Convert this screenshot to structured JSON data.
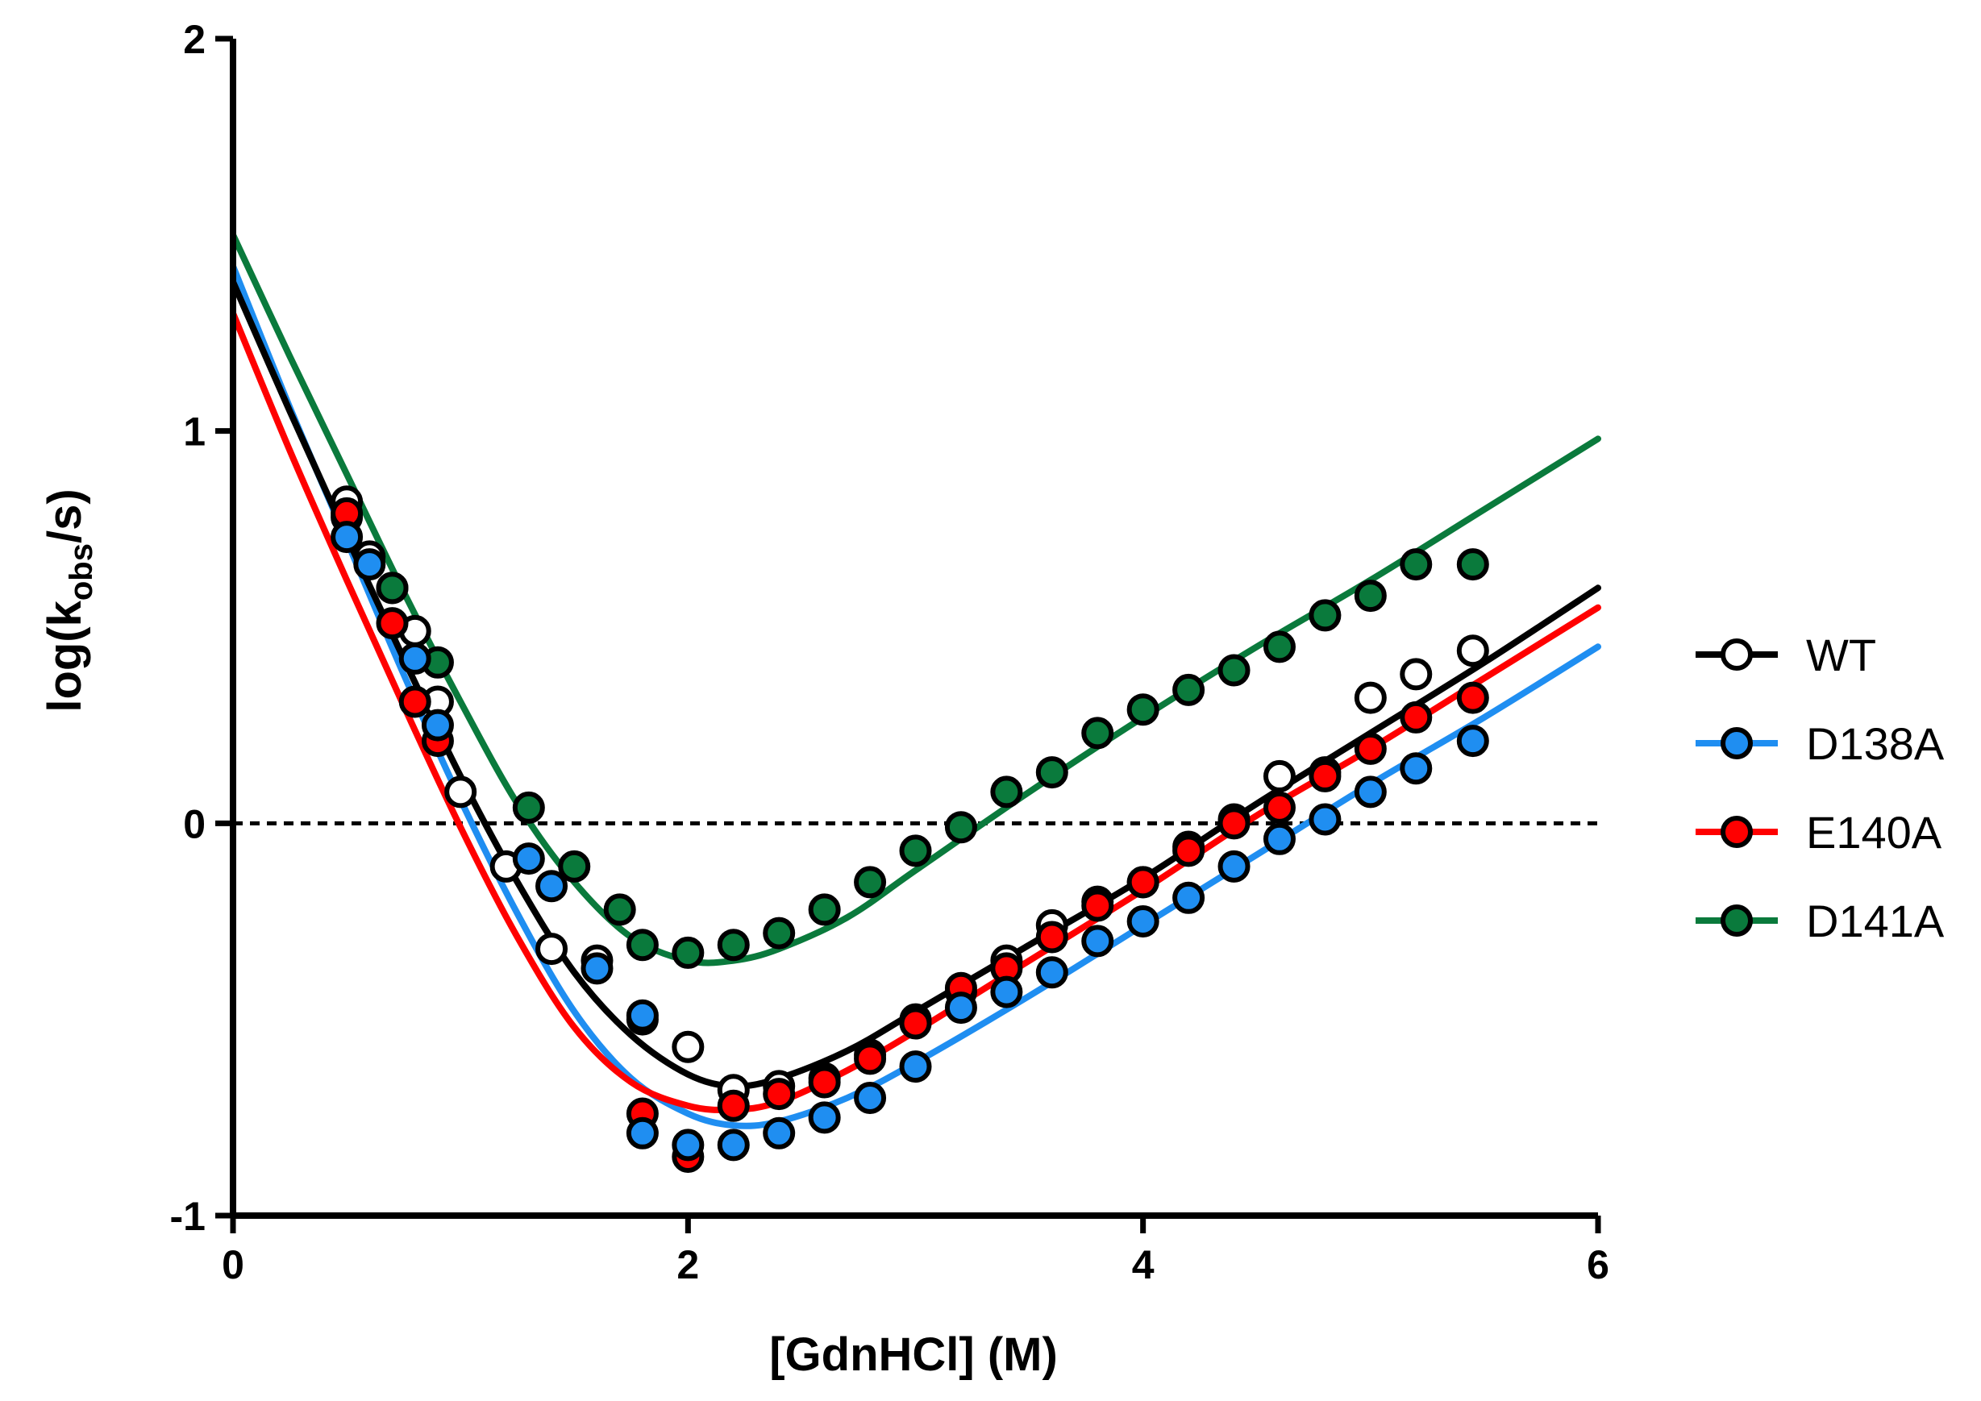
{
  "chart_data": {
    "type": "scatter",
    "title": "",
    "xlabel": "[GdnHCl] (M)",
    "ylabel_main": "log(k",
    "ylabel_sub": "obs",
    "ylabel_tail": "/s)",
    "xlim": [
      0,
      6
    ],
    "ylim": [
      -1,
      2
    ],
    "xticks": [
      0,
      2,
      4,
      6
    ],
    "yticks": [
      -1,
      0,
      1,
      2
    ],
    "xtick_labels": [
      "0",
      "2",
      "4",
      "6"
    ],
    "ytick_labels": [
      "-1",
      "0",
      "1",
      "2"
    ],
    "reference_line_y": 0,
    "legend_position": "right",
    "grid": false,
    "series": [
      {
        "name": "WT",
        "color": "#000000",
        "fill": "#ffffff",
        "points": [
          [
            0.5,
            0.82
          ],
          [
            0.6,
            0.68
          ],
          [
            0.7,
            0.6
          ],
          [
            0.8,
            0.49
          ],
          [
            0.9,
            0.31
          ],
          [
            1.0,
            0.08
          ],
          [
            1.2,
            -0.11
          ],
          [
            1.4,
            -0.32
          ],
          [
            1.6,
            -0.35
          ],
          [
            1.8,
            -0.5
          ],
          [
            2.0,
            -0.57
          ],
          [
            2.2,
            -0.68
          ],
          [
            2.4,
            -0.67
          ],
          [
            2.6,
            -0.65
          ],
          [
            2.8,
            -0.59
          ],
          [
            3.0,
            -0.5
          ],
          [
            3.2,
            -0.43
          ],
          [
            3.4,
            -0.35
          ],
          [
            3.6,
            -0.26
          ],
          [
            3.8,
            -0.2
          ],
          [
            4.0,
            -0.15
          ],
          [
            4.2,
            -0.06
          ],
          [
            4.4,
            0.01
          ],
          [
            4.6,
            0.12
          ],
          [
            4.8,
            0.13
          ],
          [
            5.0,
            0.32
          ],
          [
            5.2,
            0.38
          ],
          [
            5.45,
            0.44
          ]
        ],
        "curve": [
          [
            0,
            1.38
          ],
          [
            0.25,
            1.05
          ],
          [
            0.5,
            0.73
          ],
          [
            0.75,
            0.42
          ],
          [
            1.0,
            0.12
          ],
          [
            1.25,
            -0.15
          ],
          [
            1.5,
            -0.38
          ],
          [
            1.75,
            -0.54
          ],
          [
            2.0,
            -0.64
          ],
          [
            2.2,
            -0.67
          ],
          [
            2.4,
            -0.65
          ],
          [
            2.7,
            -0.58
          ],
          [
            3.0,
            -0.48
          ],
          [
            3.5,
            -0.31
          ],
          [
            4.0,
            -0.14
          ],
          [
            4.5,
            0.05
          ],
          [
            5.0,
            0.23
          ],
          [
            5.5,
            0.41
          ],
          [
            6.0,
            0.6
          ]
        ]
      },
      {
        "name": "D138A",
        "color": "#1f8ef1",
        "fill": "#1f8ef1",
        "points": [
          [
            0.5,
            0.73
          ],
          [
            0.6,
            0.66
          ],
          [
            0.8,
            0.42
          ],
          [
            0.9,
            0.25
          ],
          [
            1.3,
            -0.09
          ],
          [
            1.4,
            -0.16
          ],
          [
            1.6,
            -0.37
          ],
          [
            1.8,
            -0.49
          ],
          [
            1.8,
            -0.79
          ],
          [
            2.0,
            -0.82
          ],
          [
            2.2,
            -0.82
          ],
          [
            2.4,
            -0.79
          ],
          [
            2.6,
            -0.75
          ],
          [
            2.8,
            -0.7
          ],
          [
            3.0,
            -0.62
          ],
          [
            3.2,
            -0.47
          ],
          [
            3.4,
            -0.43
          ],
          [
            3.6,
            -0.38
          ],
          [
            3.8,
            -0.3
          ],
          [
            4.0,
            -0.25
          ],
          [
            4.2,
            -0.19
          ],
          [
            4.4,
            -0.11
          ],
          [
            4.6,
            -0.04
          ],
          [
            4.8,
            0.01
          ],
          [
            5.0,
            0.08
          ],
          [
            5.2,
            0.14
          ],
          [
            5.45,
            0.21
          ]
        ],
        "curve": [
          [
            0,
            1.42
          ],
          [
            0.25,
            1.06
          ],
          [
            0.5,
            0.72
          ],
          [
            0.75,
            0.38
          ],
          [
            1.0,
            0.06
          ],
          [
            1.25,
            -0.23
          ],
          [
            1.5,
            -0.48
          ],
          [
            1.75,
            -0.65
          ],
          [
            2.0,
            -0.74
          ],
          [
            2.2,
            -0.77
          ],
          [
            2.4,
            -0.76
          ],
          [
            2.7,
            -0.7
          ],
          [
            3.0,
            -0.61
          ],
          [
            3.5,
            -0.44
          ],
          [
            4.0,
            -0.26
          ],
          [
            4.5,
            -0.08
          ],
          [
            5.0,
            0.1
          ],
          [
            5.5,
            0.27
          ],
          [
            6.0,
            0.45
          ]
        ]
      },
      {
        "name": "E140A",
        "color": "#ff0000",
        "fill": "#ff0000",
        "points": [
          [
            0.5,
            0.79
          ],
          [
            0.7,
            0.51
          ],
          [
            0.8,
            0.31
          ],
          [
            0.9,
            0.21
          ],
          [
            1.8,
            -0.74
          ],
          [
            2.0,
            -0.85
          ],
          [
            2.2,
            -0.72
          ],
          [
            2.4,
            -0.69
          ],
          [
            2.6,
            -0.66
          ],
          [
            2.8,
            -0.6
          ],
          [
            3.0,
            -0.51
          ],
          [
            3.2,
            -0.42
          ],
          [
            3.4,
            -0.37
          ],
          [
            3.6,
            -0.29
          ],
          [
            3.8,
            -0.21
          ],
          [
            4.0,
            -0.15
          ],
          [
            4.2,
            -0.07
          ],
          [
            4.4,
            0.0
          ],
          [
            4.6,
            0.04
          ],
          [
            4.8,
            0.12
          ],
          [
            5.0,
            0.19
          ],
          [
            5.2,
            0.27
          ],
          [
            5.45,
            0.32
          ]
        ],
        "curve": [
          [
            0,
            1.3
          ],
          [
            0.25,
            0.95
          ],
          [
            0.5,
            0.62
          ],
          [
            0.75,
            0.3
          ],
          [
            1.0,
            -0.01
          ],
          [
            1.25,
            -0.29
          ],
          [
            1.5,
            -0.52
          ],
          [
            1.75,
            -0.66
          ],
          [
            2.0,
            -0.72
          ],
          [
            2.2,
            -0.73
          ],
          [
            2.4,
            -0.71
          ],
          [
            2.7,
            -0.63
          ],
          [
            3.0,
            -0.53
          ],
          [
            3.5,
            -0.35
          ],
          [
            4.0,
            -0.17
          ],
          [
            4.5,
            0.02
          ],
          [
            5.0,
            0.19
          ],
          [
            5.5,
            0.37
          ],
          [
            6.0,
            0.55
          ]
        ]
      },
      {
        "name": "D141A",
        "color": "#0a7a3c",
        "fill": "#0a7a3c",
        "points": [
          [
            0.5,
            0.78
          ],
          [
            0.7,
            0.6
          ],
          [
            0.9,
            0.41
          ],
          [
            1.3,
            0.04
          ],
          [
            1.5,
            -0.11
          ],
          [
            1.7,
            -0.22
          ],
          [
            1.8,
            -0.31
          ],
          [
            2.0,
            -0.33
          ],
          [
            2.2,
            -0.31
          ],
          [
            2.4,
            -0.28
          ],
          [
            2.6,
            -0.22
          ],
          [
            2.8,
            -0.15
          ],
          [
            3.0,
            -0.07
          ],
          [
            3.2,
            -0.01
          ],
          [
            3.4,
            0.08
          ],
          [
            3.6,
            0.13
          ],
          [
            3.8,
            0.23
          ],
          [
            4.0,
            0.29
          ],
          [
            4.2,
            0.34
          ],
          [
            4.4,
            0.39
          ],
          [
            4.6,
            0.45
          ],
          [
            4.8,
            0.53
          ],
          [
            5.0,
            0.58
          ],
          [
            5.2,
            0.66
          ],
          [
            5.45,
            0.66
          ]
        ],
        "curve": [
          [
            0,
            1.5
          ],
          [
            0.25,
            1.19
          ],
          [
            0.5,
            0.89
          ],
          [
            0.75,
            0.59
          ],
          [
            1.0,
            0.31
          ],
          [
            1.25,
            0.05
          ],
          [
            1.5,
            -0.15
          ],
          [
            1.75,
            -0.29
          ],
          [
            2.0,
            -0.35
          ],
          [
            2.2,
            -0.35
          ],
          [
            2.4,
            -0.32
          ],
          [
            2.7,
            -0.24
          ],
          [
            3.0,
            -0.12
          ],
          [
            3.5,
            0.08
          ],
          [
            4.0,
            0.27
          ],
          [
            4.5,
            0.45
          ],
          [
            5.0,
            0.62
          ],
          [
            5.5,
            0.8
          ],
          [
            6.0,
            0.98
          ]
        ]
      }
    ]
  }
}
